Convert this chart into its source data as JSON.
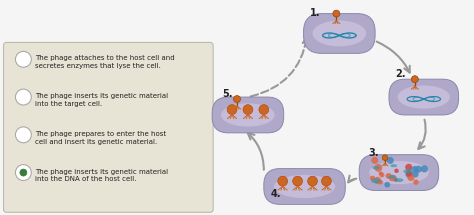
{
  "legend_items": [
    {
      "text": "The phage attaches to the host cell and\nsecretes enzymes that lyse the cell.",
      "selected": false
    },
    {
      "text": "The phage inserts its genetic material\ninto the target cell.",
      "selected": false
    },
    {
      "text": "The phage prepares to enter the host\ncell and insert its genetic material.",
      "selected": false
    },
    {
      "text": "The phage inserts its genetic material\ninto the DNA of the host cell.",
      "selected": true
    }
  ],
  "legend_box_color": "#e8e4d5",
  "legend_box_edge": "#bbbbaa",
  "background": "#f5f5f5",
  "step_labels": [
    "1.",
    "2.",
    "3.",
    "4.",
    "5."
  ],
  "cell_fill": "#b0a8c8",
  "cell_fill2": "#c8c0dc",
  "cell_edge": "#8888aa",
  "arrow_color": "#999999",
  "text_color": "#222222",
  "circle_color": "#aaaaaa",
  "selected_circle_inner": "#3a7a3a",
  "phage_color": "#cc6622",
  "dna_color": "#559988",
  "particle_colors": [
    "#cc4444",
    "#4488cc",
    "#cc4444",
    "#4488cc",
    "#cc4444",
    "#4488cc",
    "#cc4444",
    "#4488cc",
    "#cc4444",
    "#4488cc"
  ]
}
